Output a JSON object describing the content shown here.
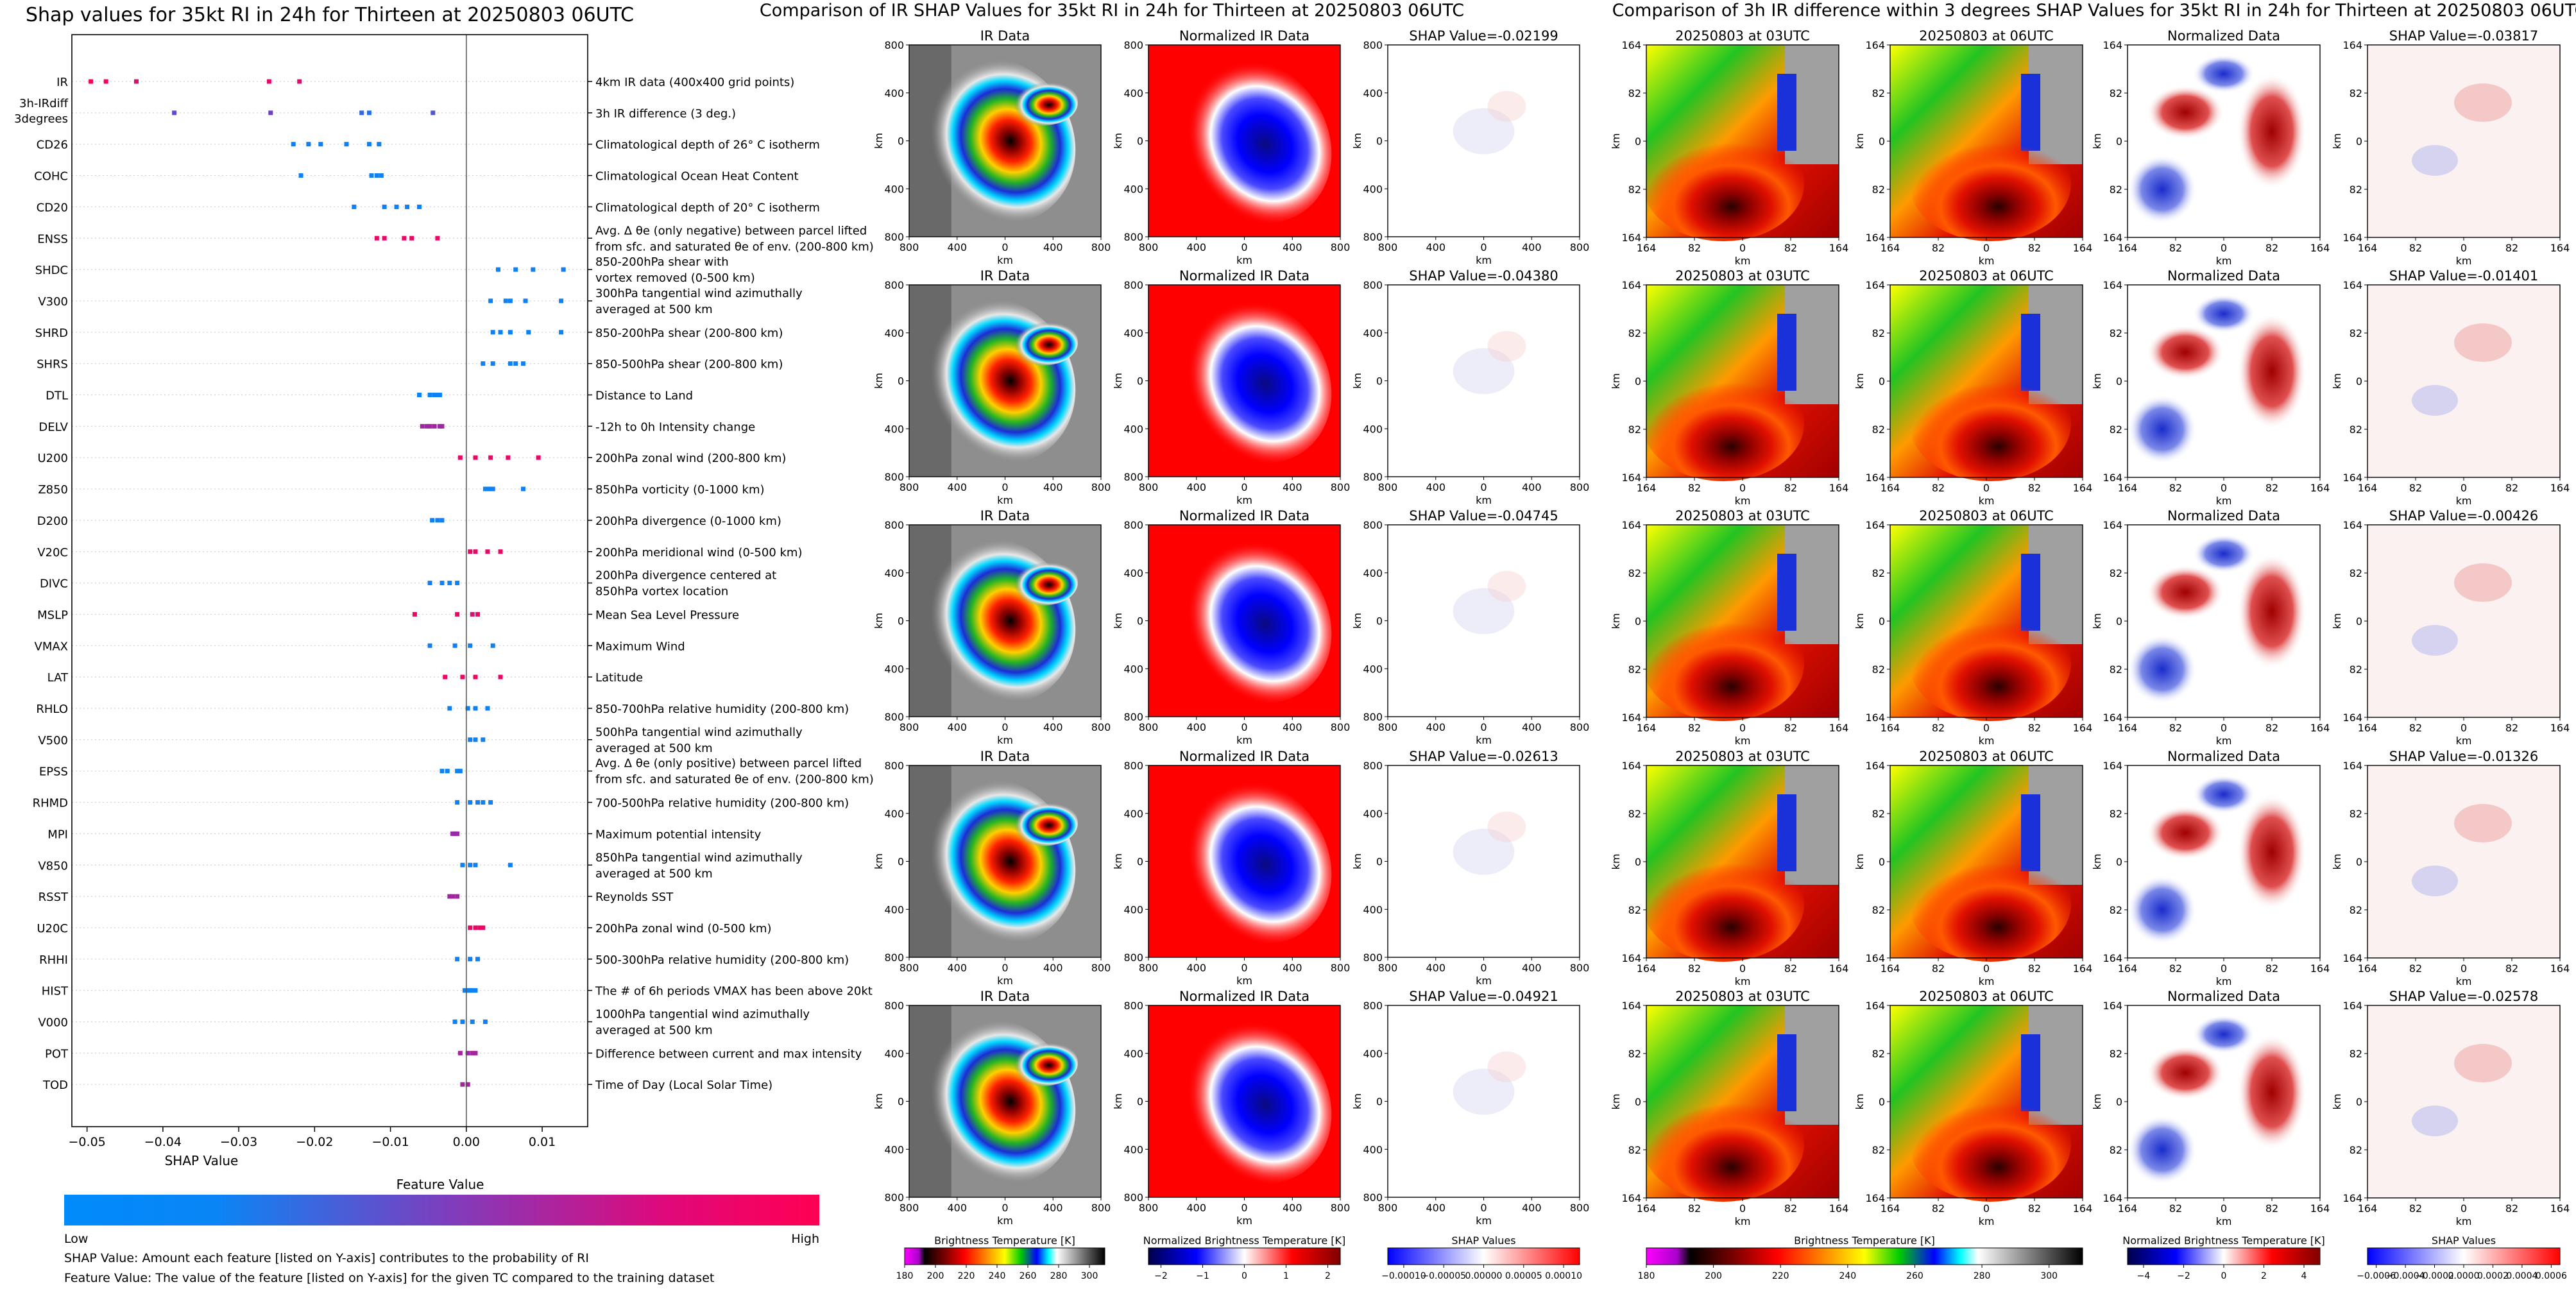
{
  "beeswarm": {
    "title": "Shap values for 35kt RI in 24h for Thirteen at 20250803 06UTC",
    "xlabel": "SHAP Value",
    "xticks": [
      -0.05,
      -0.04,
      -0.03,
      -0.02,
      -0.01,
      0.0,
      0.01
    ],
    "xtick_labels": [
      "−0.05",
      "−0.04",
      "−0.03",
      "−0.02",
      "−0.01",
      "0.00",
      "0.01"
    ],
    "xlim": [
      -0.052,
      0.016
    ],
    "colorbar_title": "Feature Value",
    "colorbar_low": "Low",
    "colorbar_high": "High",
    "note1": "SHAP Value: Amount each feature [listed on Y-axis] contributes to the probability of RI",
    "note2": "Feature Value: The value of the feature [listed on Y-axis] for the given TC compared to the training dataset",
    "colors": {
      "low": "#008bfb",
      "high": "#ff0052"
    }
  },
  "chart_data": [
    {
      "type": "scatter",
      "title": "Shap values for 35kt RI in 24h for Thirteen at 20250803 06UTC",
      "xlabel": "SHAP Value",
      "ylabel": "",
      "xlim": [
        -0.052,
        0.016
      ],
      "series": [
        {
          "feature": "IR",
          "desc": [
            "4km IR data (400x400 grid points)"
          ],
          "shap": [
            -0.0495,
            -0.0475,
            -0.0435,
            -0.026,
            -0.022
          ],
          "fv": [
            0.95,
            0.9,
            0.85,
            0.9,
            0.88
          ]
        },
        {
          "feature": [
            "3h-IRdiff",
            "3degrees"
          ],
          "desc": [
            "3h IR difference (3 deg.)"
          ],
          "shap": [
            -0.0385,
            -0.0258,
            -0.0138,
            -0.0128,
            -0.0044
          ],
          "fv": [
            0.35,
            0.4,
            0.2,
            0.15,
            0.3
          ]
        },
        {
          "feature": "CD26",
          "desc": [
            "Climatological depth of 26° C isotherm"
          ],
          "shap": [
            -0.0228,
            -0.0208,
            -0.0192,
            -0.0158,
            -0.0128,
            -0.0115
          ],
          "fv": [
            0.05,
            0.05,
            0.05,
            0.05,
            0.05,
            0.05
          ]
        },
        {
          "feature": "COHC",
          "desc": [
            "Climatological Ocean Heat Content"
          ],
          "shap": [
            -0.0218,
            -0.0125,
            -0.0118,
            -0.0112
          ],
          "fv": [
            0.05,
            0.05,
            0.05,
            0.05
          ]
        },
        {
          "feature": "CD20",
          "desc": [
            "Climatological depth of 20° C isotherm"
          ],
          "shap": [
            -0.0148,
            -0.0108,
            -0.0092,
            -0.0078,
            -0.0062
          ],
          "fv": [
            0.05,
            0.05,
            0.05,
            0.05,
            0.05
          ]
        },
        {
          "feature": "ENSS",
          "desc": [
            "Avg. Δ θe (only negative) between parcel lifted",
            "from sfc. and saturated θe of env. (200-800 km)"
          ],
          "shap": [
            -0.0118,
            -0.0108,
            -0.0082,
            -0.0072,
            -0.0038
          ],
          "fv": [
            0.9,
            0.9,
            0.9,
            0.9,
            0.9
          ]
        },
        {
          "feature": "SHDC",
          "desc": [
            "850-200hPa shear with",
            "vortex removed (0-500 km)"
          ],
          "shap": [
            0.0042,
            0.0065,
            0.0088,
            0.0128
          ],
          "fv": [
            0.05,
            0.05,
            0.05,
            0.05
          ]
        },
        {
          "feature": "V300",
          "desc": [
            "300hPa tangential wind azimuthally",
            "averaged at 500 km"
          ],
          "shap": [
            0.0032,
            0.0052,
            0.0058,
            0.0078,
            0.0125
          ],
          "fv": [
            0.05,
            0.05,
            0.05,
            0.05,
            0.05
          ]
        },
        {
          "feature": "SHRD",
          "desc": [
            "850-200hPa shear (200-800 km)"
          ],
          "shap": [
            0.0035,
            0.0045,
            0.0058,
            0.0082,
            0.0125
          ],
          "fv": [
            0.05,
            0.05,
            0.05,
            0.05,
            0.05
          ]
        },
        {
          "feature": "SHRS",
          "desc": [
            "850-500hPa shear (200-800 km)"
          ],
          "shap": [
            0.0022,
            0.0035,
            0.0058,
            0.0065,
            0.0075
          ],
          "fv": [
            0.05,
            0.05,
            0.05,
            0.05,
            0.05
          ]
        },
        {
          "feature": "DTL",
          "desc": [
            "Distance to Land"
          ],
          "shap": [
            -0.0062,
            -0.0048,
            -0.0042,
            -0.0038,
            -0.0035
          ],
          "fv": [
            0.05,
            0.05,
            0.05,
            0.05,
            0.05
          ]
        },
        {
          "feature": "DELV",
          "desc": [
            "-12h to 0h Intensity change"
          ],
          "shap": [
            -0.0058,
            -0.0052,
            -0.0048,
            -0.0042,
            -0.0035,
            -0.0032
          ],
          "fv": [
            0.6,
            0.55,
            0.6,
            0.6,
            0.55,
            0.6
          ]
        },
        {
          "feature": "U200",
          "desc": [
            "200hPa zonal wind (200-800 km)"
          ],
          "shap": [
            -0.0008,
            0.0012,
            0.0032,
            0.0055,
            0.0095
          ],
          "fv": [
            0.9,
            0.9,
            0.9,
            0.9,
            0.9
          ]
        },
        {
          "feature": "Z850",
          "desc": [
            "850hPa vorticity (0-1000 km)"
          ],
          "shap": [
            0.0025,
            0.0028,
            0.0032,
            0.0035,
            0.0075
          ],
          "fv": [
            0.05,
            0.05,
            0.05,
            0.05,
            0.05
          ]
        },
        {
          "feature": "D200",
          "desc": [
            "200hPa divergence (0-1000 km)"
          ],
          "shap": [
            -0.0045,
            -0.0038,
            -0.0032
          ],
          "fv": [
            0.05,
            0.05,
            0.05
          ]
        },
        {
          "feature": "V20C",
          "desc": [
            "200hPa meridional wind (0-500 km)"
          ],
          "shap": [
            0.0005,
            0.0012,
            0.0028,
            0.0045
          ],
          "fv": [
            0.9,
            0.9,
            0.9,
            0.9
          ]
        },
        {
          "feature": "DIVC",
          "desc": [
            "200hPa divergence centered at",
            "850hPa vortex location"
          ],
          "shap": [
            -0.0048,
            -0.0032,
            -0.0022,
            -0.0012
          ],
          "fv": [
            0.05,
            0.05,
            0.05,
            0.05
          ]
        },
        {
          "feature": "MSLP",
          "desc": [
            "Mean Sea Level Pressure"
          ],
          "shap": [
            -0.0068,
            -0.0012,
            0.0008,
            0.0015
          ],
          "fv": [
            0.9,
            0.9,
            0.8,
            0.9
          ]
        },
        {
          "feature": "VMAX",
          "desc": [
            "Maximum Wind"
          ],
          "shap": [
            -0.0048,
            -0.0015,
            0.0005,
            0.0035
          ],
          "fv": [
            0.05,
            0.05,
            0.05,
            0.05
          ]
        },
        {
          "feature": "LAT",
          "desc": [
            "Latitude"
          ],
          "shap": [
            -0.0028,
            -0.0005,
            0.0012,
            0.0045
          ],
          "fv": [
            0.9,
            0.9,
            0.9,
            0.9
          ]
        },
        {
          "feature": "RHLO",
          "desc": [
            "850-700hPa relative humidity (200-800 km)"
          ],
          "shap": [
            -0.0022,
            0.0002,
            0.0012,
            0.0028
          ],
          "fv": [
            0.05,
            0.05,
            0.05,
            0.05
          ]
        },
        {
          "feature": "V500",
          "desc": [
            "500hPa tangential wind azimuthally",
            "averaged at 500 km"
          ],
          "shap": [
            0.0005,
            0.0012,
            0.0022
          ],
          "fv": [
            0.05,
            0.05,
            0.05
          ]
        },
        {
          "feature": "EPSS",
          "desc": [
            "Avg. Δ θe (only positive) between parcel lifted",
            "from sfc. and saturated θe of env. (200-800 km)"
          ],
          "shap": [
            -0.0032,
            -0.0025,
            -0.0012,
            -0.0008
          ],
          "fv": [
            0.05,
            0.05,
            0.05,
            0.05
          ]
        },
        {
          "feature": "RHMD",
          "desc": [
            "700-500hPa relative humidity (200-800 km)"
          ],
          "shap": [
            -0.0012,
            0.0005,
            0.0015,
            0.0022,
            0.0032
          ],
          "fv": [
            0.05,
            0.05,
            0.05,
            0.05,
            0.05
          ]
        },
        {
          "feature": "MPI",
          "desc": [
            "Maximum potential intensity"
          ],
          "shap": [
            -0.0018,
            -0.0015,
            -0.0012
          ],
          "fv": [
            0.55,
            0.55,
            0.55
          ]
        },
        {
          "feature": "V850",
          "desc": [
            "850hPa tangential wind azimuthally",
            "averaged at 500 km"
          ],
          "shap": [
            -0.0005,
            0.0005,
            0.0012,
            0.0058
          ],
          "fv": [
            0.05,
            0.05,
            0.05,
            0.05
          ]
        },
        {
          "feature": "RSST",
          "desc": [
            "Reynolds SST"
          ],
          "shap": [
            -0.0022,
            -0.0018,
            -0.0012
          ],
          "fv": [
            0.6,
            0.6,
            0.6
          ]
        },
        {
          "feature": "U20C",
          "desc": [
            "200hPa zonal wind (0-500 km)"
          ],
          "shap": [
            0.0005,
            0.0012,
            0.0018,
            0.0022
          ],
          "fv": [
            0.9,
            0.9,
            0.9,
            0.9
          ]
        },
        {
          "feature": "RHHI",
          "desc": [
            "500-300hPa relative humidity (200-800 km)"
          ],
          "shap": [
            -0.0012,
            0.0005,
            0.0015
          ],
          "fv": [
            0.05,
            0.05,
            0.05
          ]
        },
        {
          "feature": "HIST",
          "desc": [
            "The # of 6h periods VMAX has been above 20kt"
          ],
          "shap": [
            -0.0002,
            0.0002,
            0.0005,
            0.0008,
            0.0012
          ],
          "fv": [
            0.05,
            0.05,
            0.05,
            0.05,
            0.05
          ]
        },
        {
          "feature": "V000",
          "desc": [
            "1000hPa tangential wind azimuthally",
            "averaged at 500 km"
          ],
          "shap": [
            -0.0015,
            -0.0005,
            0.0008,
            0.0025
          ],
          "fv": [
            0.05,
            0.05,
            0.05,
            0.05
          ]
        },
        {
          "feature": "POT",
          "desc": [
            "Difference between current and max intensity"
          ],
          "shap": [
            -0.0008,
            0.0002,
            0.0008,
            0.0012
          ],
          "fv": [
            0.6,
            0.6,
            0.6,
            0.6
          ]
        },
        {
          "feature": "TOD",
          "desc": [
            "Time of Day (Local Solar Time)"
          ],
          "shap": [
            -0.0005,
            0.0002
          ],
          "fv": [
            0.6,
            0.6
          ]
        }
      ]
    },
    {
      "type": "heatmap",
      "title": "Comparison of IR SHAP Values for 35kt RI in 24h for Thirteen at 20250803 06UTC",
      "column_titles": [
        "IR Data",
        "Normalized IR Data"
      ],
      "shap_titles": [
        "SHAP Value=-0.02199",
        "SHAP Value=-0.04380",
        "SHAP Value=-0.04745",
        "SHAP Value=-0.02613",
        "SHAP Value=-0.04921"
      ],
      "yticks": [
        "800",
        "400",
        "0",
        "400",
        "800"
      ],
      "xticks": [
        "800",
        "400",
        "0",
        "400",
        "800"
      ],
      "axis_label": "km",
      "colorbars": [
        {
          "label": "Brightness Temperature [K]",
          "ticks": [
            "180",
            "200",
            "220",
            "240",
            "260",
            "280",
            "300"
          ],
          "range": [
            180,
            310
          ]
        },
        {
          "label": "Normalized Brightness Temperature [K]",
          "ticks": [
            "−2",
            "−1",
            "0",
            "1",
            "2"
          ],
          "range": [
            -2.3,
            2.3
          ]
        },
        {
          "label": "SHAP Values",
          "ticks": [
            "−0.00010",
            "−0.00005",
            "0.00000",
            "0.00005",
            "0.00010"
          ],
          "range": [
            -0.00012,
            0.00012
          ]
        }
      ]
    },
    {
      "type": "heatmap",
      "title": "Comparison of 3h IR difference within 3 degrees SHAP Values for 35kt RI in 24h for Thirteen at 20250803 06UTC",
      "column_titles": [
        "20250803 at 03UTC",
        "20250803 at 06UTC",
        "Normalized Data"
      ],
      "shap_titles": [
        "SHAP Value=-0.03817",
        "SHAP Value=-0.01401",
        "SHAP Value=-0.00426",
        "SHAP Value=-0.01326",
        "SHAP Value=-0.02578"
      ],
      "yticks": [
        "164",
        "82",
        "0",
        "82",
        "164"
      ],
      "xticks": [
        "164",
        "82",
        "0",
        "82",
        "164"
      ],
      "axis_label": "km",
      "colorbars": [
        {
          "label": "Brightness Temperature [K]",
          "ticks": [
            "180",
            "200",
            "220",
            "240",
            "260",
            "280",
            "300"
          ],
          "range": [
            180,
            310
          ]
        },
        {
          "label": "Normalized Brightness Temperature [K]",
          "ticks": [
            "−4",
            "−2",
            "0",
            "2",
            "4"
          ],
          "range": [
            -4.8,
            4.8
          ]
        },
        {
          "label": "SHAP Values",
          "ticks": [
            "−0.0006",
            "−0.0004",
            "−0.0002",
            "0.0000",
            "0.0002",
            "0.0004",
            "0.0006"
          ],
          "range": [
            -0.00066,
            0.00066
          ]
        }
      ]
    }
  ]
}
